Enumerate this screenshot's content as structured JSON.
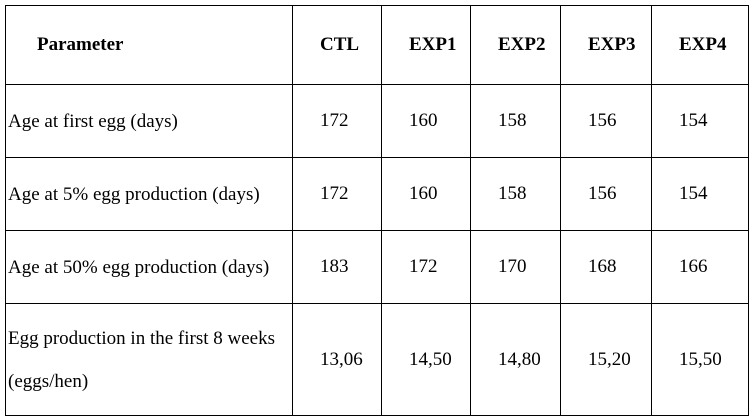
{
  "table": {
    "header": [
      "Parameter",
      "CTL",
      "EXP1",
      "EXP2",
      "EXP3",
      "EXP4"
    ],
    "rows": [
      [
        "Age at first egg (days)",
        172,
        160,
        158,
        156,
        154
      ],
      [
        "Age at 5% egg production (days)",
        172,
        160,
        158,
        156,
        154
      ],
      [
        "Age at 50% egg production (days)",
        183,
        172,
        170,
        168,
        166
      ],
      [
        "Egg production in the first 8 weeks (eggs/hen)",
        "13,06",
        "14,50",
        "14,80",
        "15,20",
        "15,50"
      ]
    ]
  }
}
